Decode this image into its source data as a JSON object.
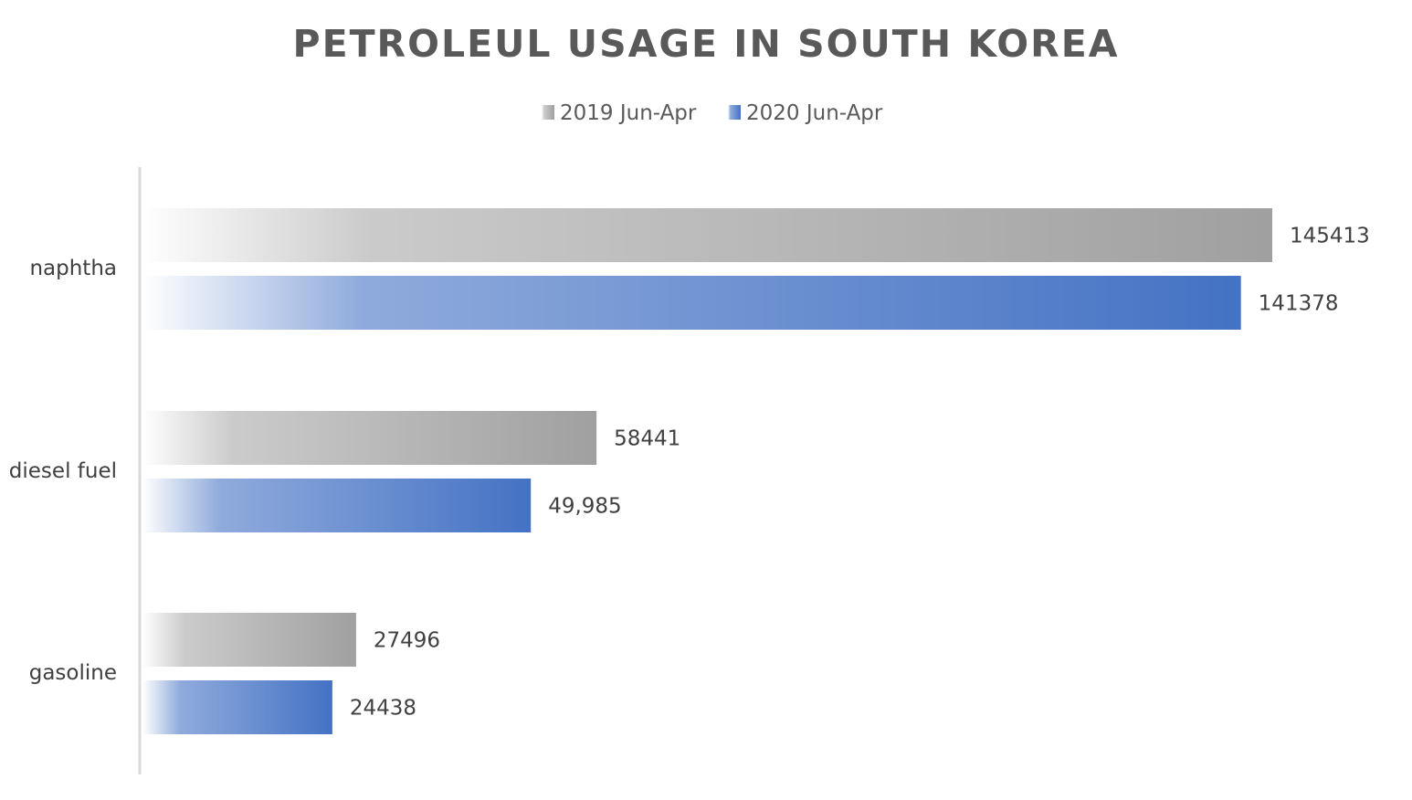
{
  "chart_data": {
    "type": "bar",
    "orientation": "horizontal",
    "title": "PETROLEUL USAGE IN SOUTH KOREA",
    "categories": [
      "naphtha",
      "diesel fuel",
      "gasoline"
    ],
    "series": [
      {
        "name": "2019 Jun-Apr",
        "values": [
          145413,
          58441,
          27496
        ],
        "labels": [
          "145413",
          "58441",
          "27496"
        ],
        "color": "#a0a0a0"
      },
      {
        "name": "2020 Jun-Apr",
        "values": [
          141378,
          49985,
          24438
        ],
        "labels": [
          "141378",
          "49,985",
          "24438"
        ],
        "color": "#4472c4"
      }
    ],
    "xlim": [
      0,
      150000
    ],
    "legend": "top-center",
    "grid": false
  }
}
